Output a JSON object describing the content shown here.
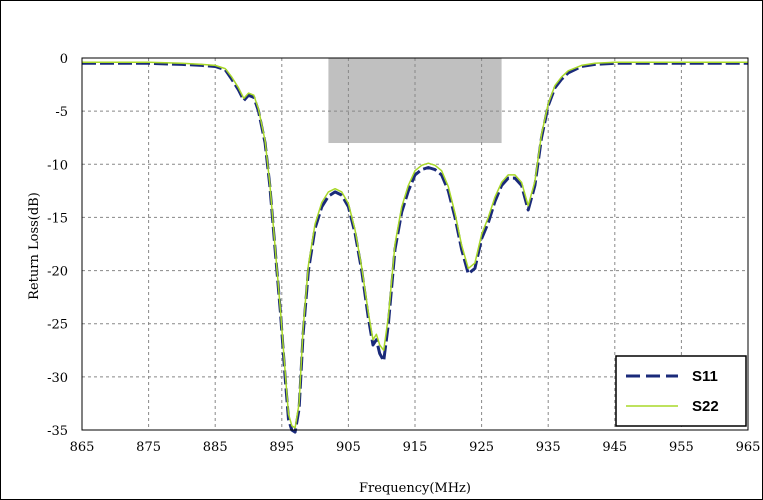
{
  "chart_data": {
    "type": "line",
    "xlabel": "Frequency(MHz)",
    "ylabel": "Return Loss(dB)",
    "xlim": [
      865,
      965
    ],
    "ylim": [
      -35,
      0
    ],
    "xticks": [
      865,
      875,
      885,
      895,
      905,
      915,
      925,
      935,
      945,
      955,
      965
    ],
    "yticks": [
      0,
      -5,
      -10,
      -15,
      -20,
      -25,
      -30,
      -35
    ],
    "grid": true,
    "legend_position": "bottom-right",
    "shaded_region": {
      "x": [
        902,
        928
      ],
      "y": [
        -8,
        0
      ],
      "color": "#c0c0c0"
    },
    "series": [
      {
        "name": "S11",
        "color": "#1a2a7a",
        "style": "dashed",
        "x": [
          865,
          870,
          875,
          880,
          883,
          885,
          886.5,
          887.5,
          888.5,
          889.3,
          890,
          890.8,
          891.5,
          892.5,
          893.2,
          894,
          894.8,
          895.5,
          896,
          896.5,
          897,
          897.6,
          898.2,
          899,
          900,
          901,
          902,
          903,
          904,
          905,
          906,
          907,
          908,
          908.7,
          909.2,
          909.7,
          910.3,
          911,
          912,
          913,
          914,
          915,
          916,
          917,
          918,
          919,
          920,
          921,
          922,
          923,
          924,
          925,
          926,
          927,
          928,
          929,
          930,
          931,
          932,
          933,
          934,
          935,
          936,
          937,
          938,
          940,
          942,
          945,
          950,
          955,
          965
        ],
        "y": [
          -0.5,
          -0.5,
          -0.5,
          -0.6,
          -0.7,
          -0.8,
          -1.1,
          -2.0,
          -3.0,
          -4.0,
          -3.5,
          -3.7,
          -5.0,
          -8.0,
          -12.0,
          -18.0,
          -24.0,
          -30.0,
          -34.0,
          -35.0,
          -35.2,
          -33.0,
          -26.0,
          -20.0,
          -16.0,
          -14.0,
          -13.0,
          -12.6,
          -12.9,
          -14.0,
          -16.5,
          -20.0,
          -24.5,
          -27.0,
          -26.5,
          -27.8,
          -28.5,
          -25.0,
          -18.0,
          -14.5,
          -12.5,
          -11.0,
          -10.5,
          -10.3,
          -10.5,
          -11.0,
          -12.5,
          -15.0,
          -18.0,
          -20.3,
          -19.8,
          -17.0,
          -15.5,
          -13.5,
          -12.0,
          -11.3,
          -11.3,
          -12.0,
          -14.3,
          -12.0,
          -7.5,
          -4.5,
          -2.8,
          -2.0,
          -1.4,
          -0.8,
          -0.6,
          -0.5,
          -0.5,
          -0.5,
          -0.5
        ]
      },
      {
        "name": "S22",
        "color": "#a8d828",
        "style": "solid",
        "x": [
          865,
          870,
          875,
          880,
          883,
          885,
          886.5,
          887.5,
          888.5,
          889.3,
          890,
          890.8,
          891.5,
          892.5,
          893.2,
          894,
          894.8,
          895.5,
          896,
          896.5,
          897,
          897.6,
          898.2,
          899,
          900,
          901,
          902,
          903,
          904,
          905,
          906,
          907,
          908,
          908.7,
          909.2,
          909.7,
          910.3,
          911,
          912,
          913,
          914,
          915,
          916,
          917,
          918,
          919,
          920,
          921,
          922,
          923,
          924,
          925,
          926,
          927,
          928,
          929,
          930,
          931,
          932,
          933,
          934,
          935,
          936,
          937,
          938,
          940,
          942,
          945,
          950,
          955,
          965
        ],
        "y": [
          -0.4,
          -0.4,
          -0.4,
          -0.5,
          -0.6,
          -0.7,
          -1.0,
          -1.8,
          -2.8,
          -3.8,
          -3.3,
          -3.5,
          -4.8,
          -7.8,
          -11.8,
          -17.8,
          -23.8,
          -29.5,
          -33.5,
          -34.6,
          -34.8,
          -32.5,
          -25.5,
          -19.5,
          -15.6,
          -13.6,
          -12.6,
          -12.3,
          -12.6,
          -13.7,
          -16.2,
          -19.7,
          -24.0,
          -26.5,
          -26.0,
          -27.0,
          -27.5,
          -24.3,
          -17.5,
          -14.0,
          -12.0,
          -10.6,
          -10.1,
          -9.9,
          -10.1,
          -10.6,
          -12.1,
          -14.6,
          -17.6,
          -19.8,
          -19.3,
          -16.6,
          -15.0,
          -13.1,
          -11.7,
          -11.0,
          -11.0,
          -11.7,
          -13.9,
          -11.6,
          -7.2,
          -4.3,
          -2.6,
          -1.8,
          -1.2,
          -0.7,
          -0.5,
          -0.4,
          -0.4,
          -0.4,
          -0.4
        ]
      }
    ]
  }
}
